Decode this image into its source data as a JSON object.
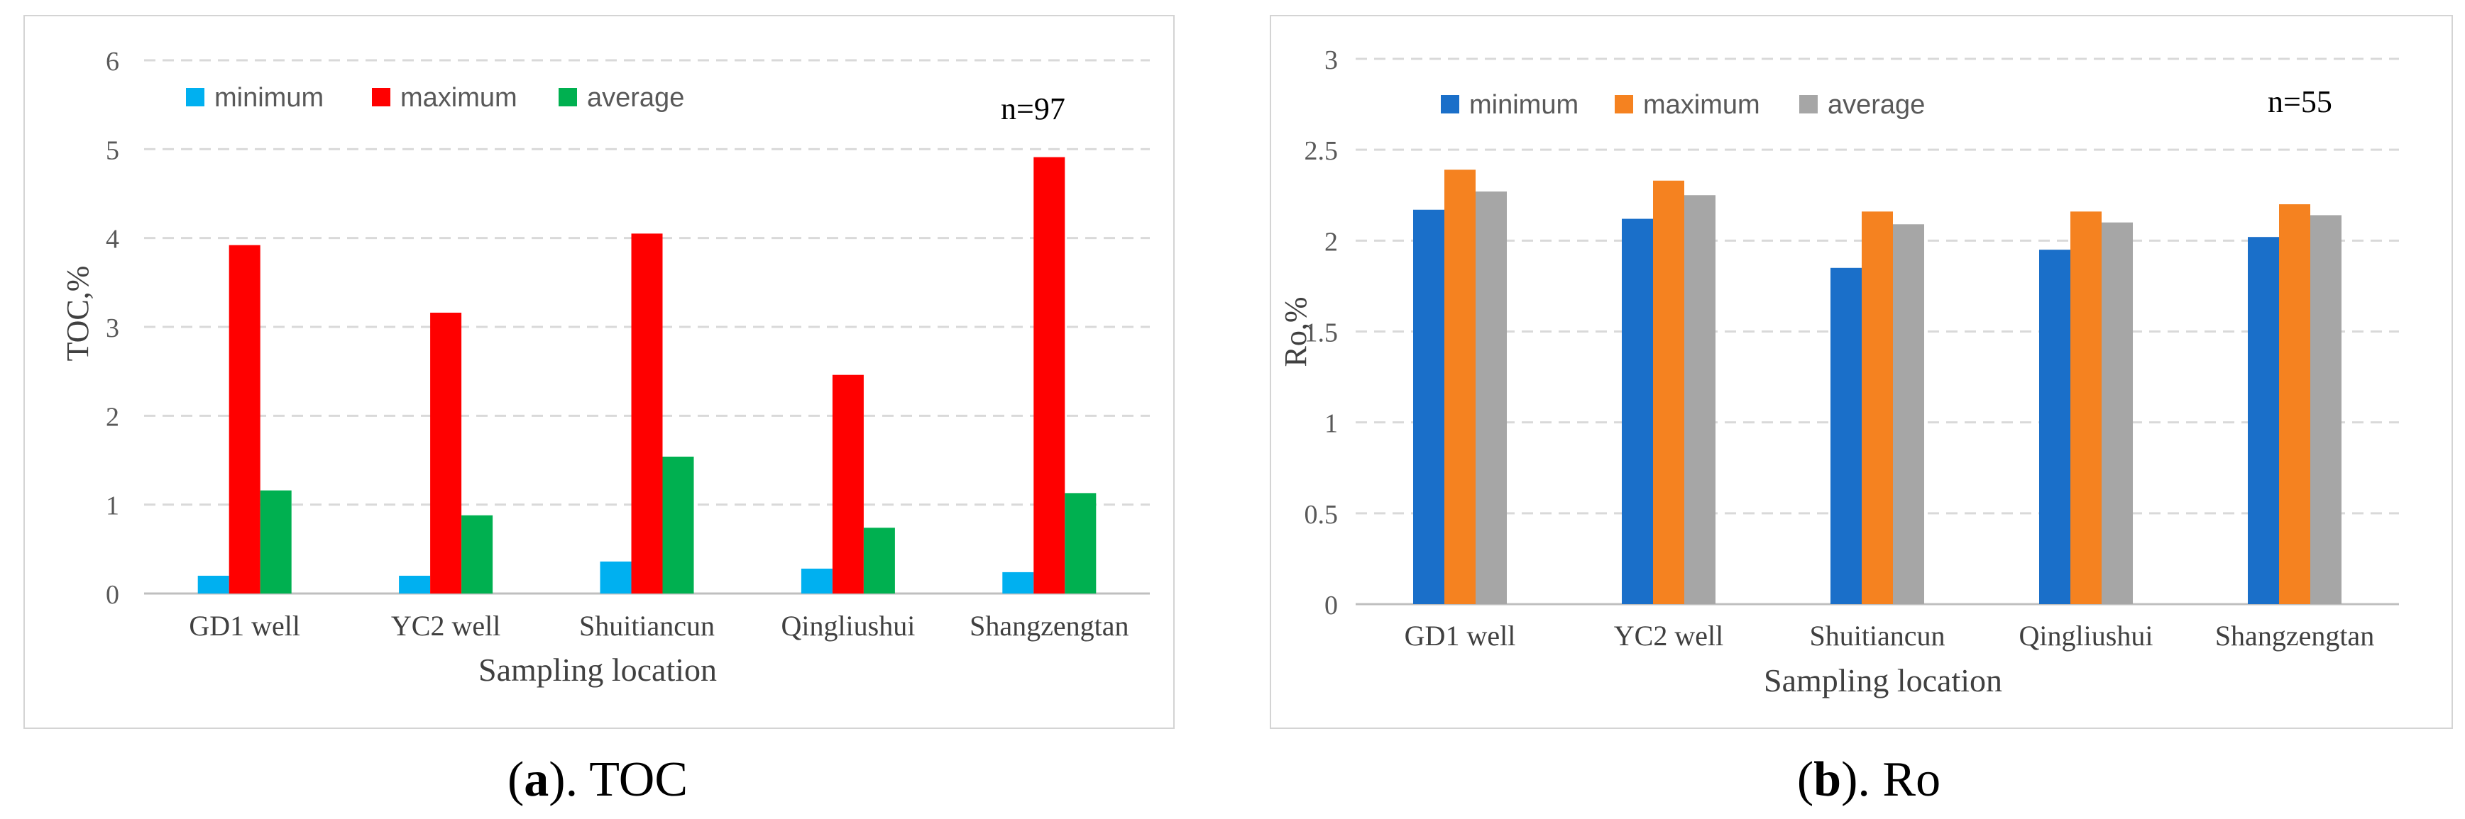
{
  "chart_data": [
    {
      "id": "a",
      "type": "bar",
      "caption_label": "a",
      "caption_text": ". TOC",
      "xlabel": "Sampling location",
      "ylabel": "TOC,%",
      "ylim": [
        0,
        6
      ],
      "yticks": [
        "0",
        "1",
        "2",
        "3",
        "4",
        "5",
        "6"
      ],
      "grid": true,
      "legend_position": "top-left",
      "annotation": "n=97",
      "categories": [
        "GD1 well",
        "YC2 well",
        "Shuitiancun",
        "Qingliushui",
        "Shangzengtan"
      ],
      "series": [
        {
          "name": "minimum",
          "color": "#00b0f0",
          "values": [
            0.2,
            0.2,
            0.36,
            0.28,
            0.24
          ]
        },
        {
          "name": "maximum",
          "color": "#ff0000",
          "values": [
            3.92,
            3.16,
            4.05,
            2.46,
            4.91
          ]
        },
        {
          "name": "average",
          "color": "#00b050",
          "values": [
            1.16,
            0.88,
            1.54,
            0.74,
            1.13
          ]
        }
      ]
    },
    {
      "id": "b",
      "type": "bar",
      "caption_label": "b",
      "caption_text": ". Ro",
      "xlabel": "Sampling location",
      "ylabel": "Ro,%",
      "ylim": [
        0,
        3
      ],
      "yticks": [
        "0",
        "0.5",
        "1",
        "1.5",
        "2",
        "2.5",
        "3"
      ],
      "grid": true,
      "legend_position": "top-left",
      "annotation": "n=55",
      "categories": [
        "GD1 well",
        "YC2 well",
        "Shuitiancun",
        "Qingliushui",
        "Shangzengtan"
      ],
      "series": [
        {
          "name": "minimum",
          "color": "#1a6fc9",
          "values": [
            2.17,
            2.12,
            1.85,
            1.95,
            2.02
          ]
        },
        {
          "name": "maximum",
          "color": "#f58220",
          "values": [
            2.39,
            2.33,
            2.16,
            2.16,
            2.2
          ]
        },
        {
          "name": "average",
          "color": "#a6a6a6",
          "values": [
            2.27,
            2.25,
            2.09,
            2.1,
            2.14
          ]
        }
      ]
    }
  ]
}
